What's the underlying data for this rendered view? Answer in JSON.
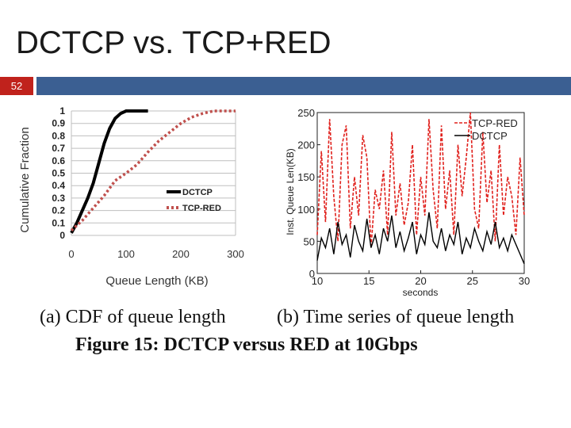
{
  "slide": {
    "title": "DCTCP vs. TCP+RED",
    "number": "52",
    "colors": {
      "badge": "#c0221c",
      "bar": "#3b5f92"
    }
  },
  "chart_data": [
    {
      "type": "line",
      "xlabel": "Queue Length (KB)",
      "ylabel": "Cumulative Fraction",
      "xlim": [
        0,
        300
      ],
      "ylim": [
        0,
        1
      ],
      "x_ticks": [
        "0",
        "100",
        "200",
        "300"
      ],
      "y_ticks": [
        "0",
        "0.1",
        "0.2",
        "0.3",
        "0.4",
        "0.5",
        "0.6",
        "0.7",
        "0.8",
        "0.9",
        "1"
      ],
      "grid": true,
      "legend": "center-right",
      "series": [
        {
          "name": "DCTCP",
          "color": "#000000",
          "style": "solid",
          "x": [
            0,
            10,
            20,
            30,
            40,
            50,
            60,
            70,
            80,
            90,
            100,
            110,
            120,
            130,
            140
          ],
          "y": [
            0.02,
            0.1,
            0.2,
            0.3,
            0.42,
            0.58,
            0.74,
            0.86,
            0.94,
            0.98,
            1.0,
            1.0,
            1.0,
            1.0,
            1.0
          ]
        },
        {
          "name": "TCP-RED",
          "color": "#c0504d",
          "style": "dotted",
          "x": [
            0,
            20,
            40,
            60,
            80,
            100,
            120,
            140,
            160,
            180,
            200,
            220,
            240,
            260,
            280,
            300
          ],
          "y": [
            0.04,
            0.12,
            0.22,
            0.32,
            0.44,
            0.5,
            0.57,
            0.67,
            0.76,
            0.83,
            0.9,
            0.95,
            0.98,
            1.0,
            1.0,
            1.0
          ]
        }
      ],
      "caption": "(a) CDF of queue length"
    },
    {
      "type": "line",
      "xlabel": "seconds",
      "ylabel": "Inst. Queue Len(KB)",
      "xlim": [
        10,
        30
      ],
      "ylim": [
        0,
        250
      ],
      "x_ticks": [
        "10",
        "15",
        "20",
        "25",
        "30"
      ],
      "y_ticks": [
        "0",
        "50",
        "100",
        "150",
        "200",
        "250"
      ],
      "grid": false,
      "legend": "top-right",
      "series": [
        {
          "name": "TCP-RED",
          "color": "#e0201c",
          "style": "dashed",
          "x": [
            10,
            10.4,
            10.8,
            11.2,
            11.6,
            12,
            12.4,
            12.8,
            13.2,
            13.6,
            14,
            14.4,
            14.8,
            15.2,
            15.6,
            16,
            16.4,
            16.8,
            17.2,
            17.6,
            18,
            18.4,
            18.8,
            19.2,
            19.6,
            20,
            20.4,
            20.8,
            21.2,
            21.6,
            22,
            22.4,
            22.8,
            23.2,
            23.6,
            24,
            24.4,
            24.8,
            25.2,
            25.6,
            26,
            26.4,
            26.8,
            27.2,
            27.6,
            28,
            28.4,
            28.8,
            29.2,
            29.6,
            30
          ],
          "y": [
            60,
            190,
            80,
            240,
            120,
            50,
            200,
            230,
            70,
            150,
            90,
            215,
            180,
            40,
            130,
            100,
            160,
            60,
            220,
            90,
            140,
            75,
            110,
            200,
            60,
            150,
            90,
            240,
            130,
            70,
            230,
            100,
            160,
            60,
            200,
            120,
            180,
            250,
            100,
            70,
            220,
            110,
            160,
            50,
            200,
            90,
            150,
            120,
            60,
            180,
            90
          ]
        },
        {
          "name": "DCTCP",
          "color": "#000000",
          "style": "solid",
          "x": [
            10,
            10.4,
            10.8,
            11.2,
            11.6,
            12,
            12.4,
            12.8,
            13.2,
            13.6,
            14,
            14.4,
            14.8,
            15.2,
            15.6,
            16,
            16.4,
            16.8,
            17.2,
            17.6,
            18,
            18.4,
            18.8,
            19.2,
            19.6,
            20,
            20.4,
            20.8,
            21.2,
            21.6,
            22,
            22.4,
            22.8,
            23.2,
            23.6,
            24,
            24.4,
            24.8,
            25.2,
            25.6,
            26,
            26.4,
            26.8,
            27.2,
            27.6,
            28,
            28.4,
            28.8,
            29.2,
            29.6,
            30
          ],
          "y": [
            20,
            55,
            40,
            70,
            30,
            80,
            45,
            60,
            25,
            75,
            50,
            35,
            85,
            40,
            60,
            30,
            70,
            50,
            90,
            40,
            65,
            35,
            55,
            80,
            30,
            60,
            45,
            95,
            50,
            40,
            70,
            35,
            60,
            45,
            80,
            30,
            55,
            40,
            70,
            50,
            35,
            65,
            45,
            80,
            40,
            55,
            35,
            60,
            45,
            30,
            15
          ]
        }
      ],
      "caption": "(b) Time series of queue length"
    }
  ],
  "figure_caption": "Figure 15: DCTCP versus RED at 10Gbps"
}
